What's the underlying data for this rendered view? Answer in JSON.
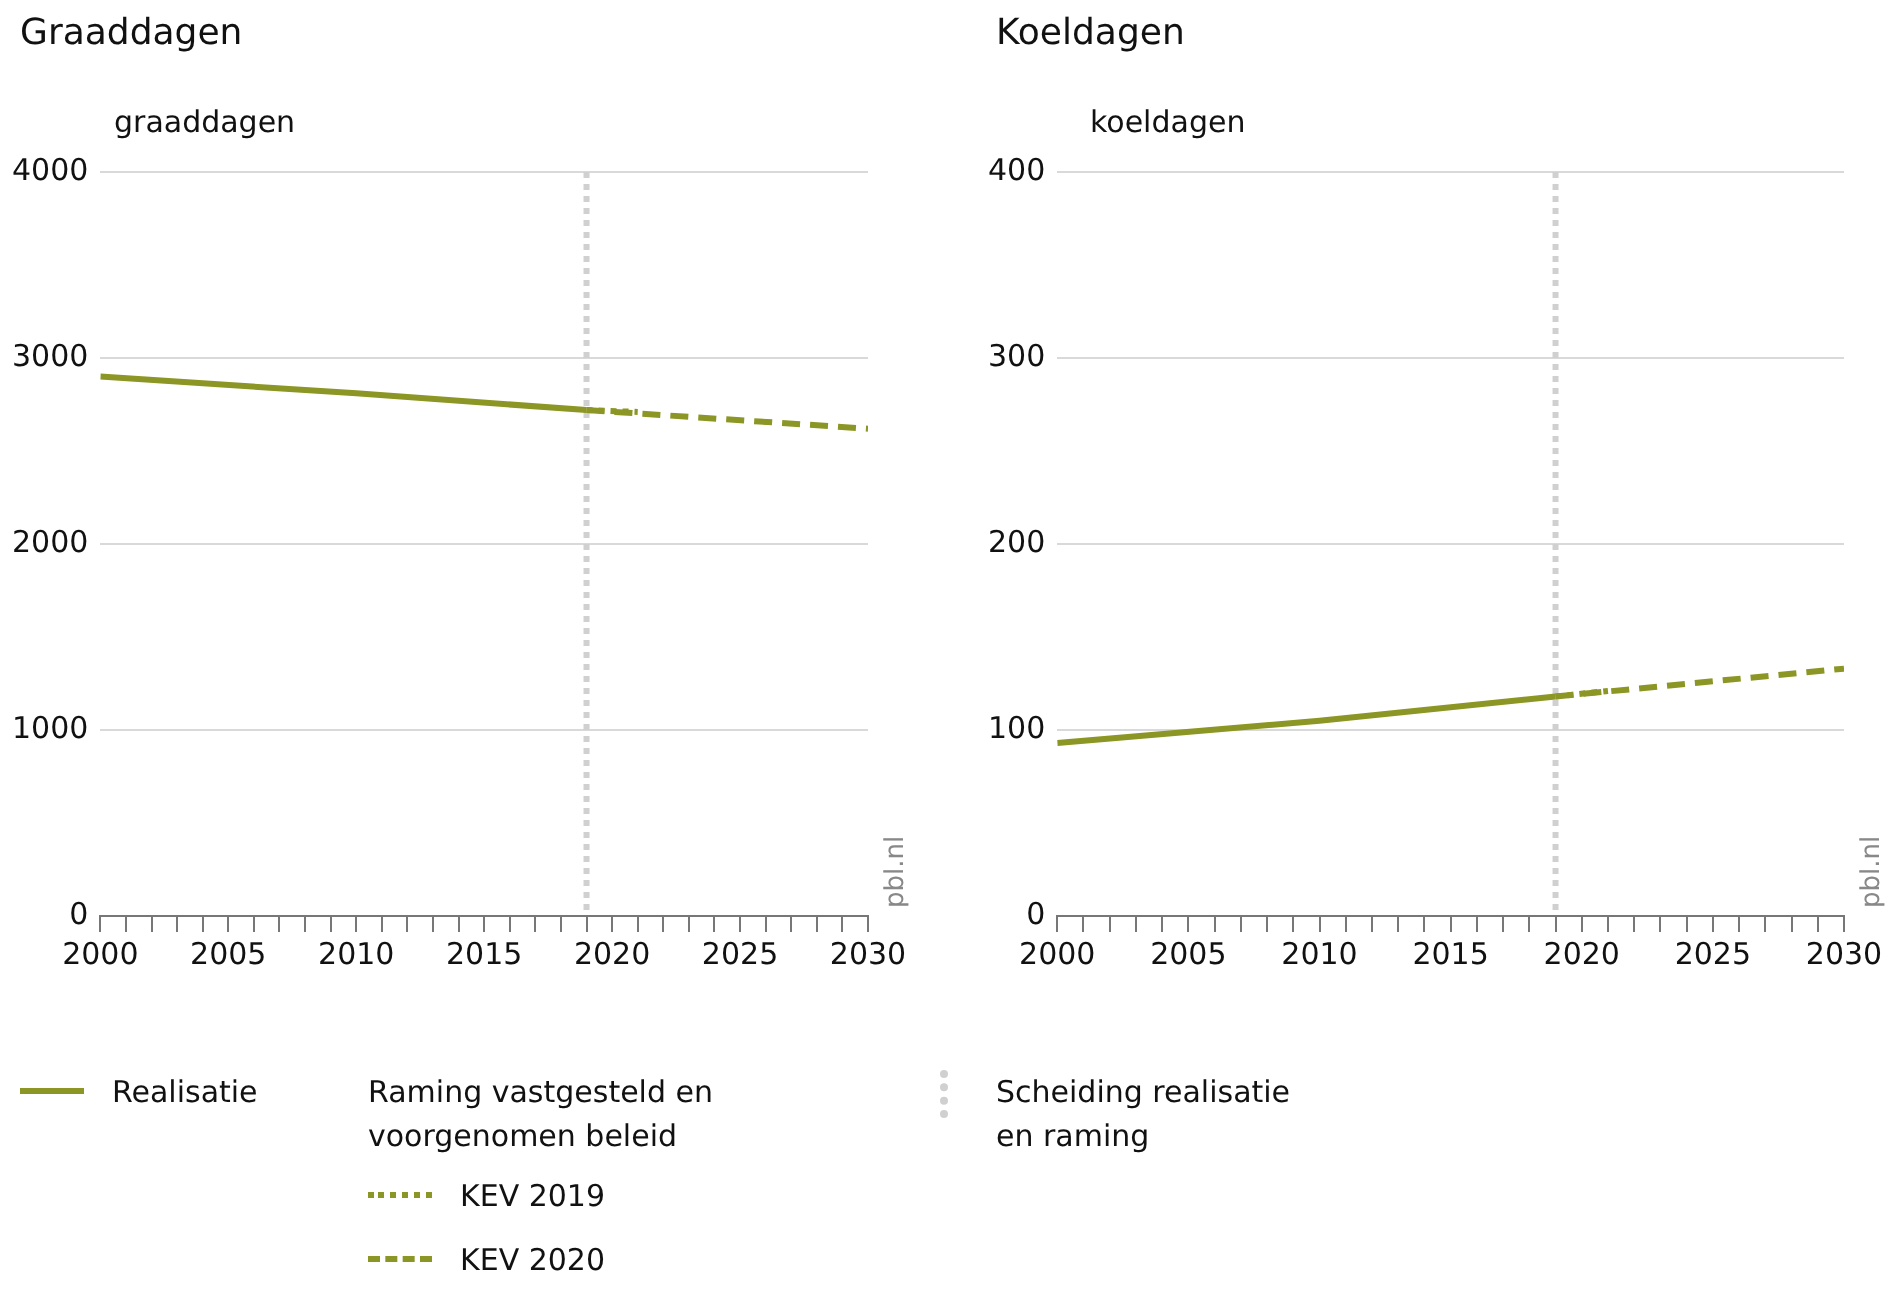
{
  "chart_data": [
    {
      "type": "line",
      "title": "Graaddagen",
      "ylabel": "graaddagen",
      "legend": "bottom",
      "legend_title": "Raming vastgesteld en voorgenomen beleid",
      "grid": "y",
      "marker": "none",
      "xlim": [
        2000,
        2030
      ],
      "xticks": [
        2000,
        {
          "value": 2001,
          "label": null
        },
        {
          "value": 2002,
          "label": null
        },
        {
          "value": 2003,
          "label": null
        },
        {
          "value": 2004,
          "label": null
        },
        2005,
        {
          "value": 2006,
          "label": null
        },
        {
          "value": 2007,
          "label": null
        },
        {
          "value": 2008,
          "label": null
        },
        {
          "value": 2009,
          "label": null
        },
        2010,
        {
          "value": 2011,
          "label": null
        },
        {
          "value": 2012,
          "label": null
        },
        {
          "value": 2013,
          "label": null
        },
        {
          "value": 2014,
          "label": null
        },
        2015,
        {
          "value": 2016,
          "label": null
        },
        {
          "value": 2017,
          "label": null
        },
        {
          "value": 2018,
          "label": null
        },
        {
          "value": 2019,
          "label": null
        },
        2020,
        {
          "value": 2021,
          "label": null
        },
        {
          "value": 2022,
          "label": null
        },
        {
          "value": 2023,
          "label": null
        },
        {
          "value": 2024,
          "label": null
        },
        2025,
        {
          "value": 2026,
          "label": null
        },
        {
          "value": 2027,
          "label": null
        },
        {
          "value": 2028,
          "label": null
        },
        {
          "value": 2029,
          "label": null
        },
        2030
      ],
      "ylim": [
        0,
        4000
      ],
      "yticks": [
        0,
        1000,
        2000,
        3000,
        4000
      ],
      "series": [
        {
          "name": "Realisatie",
          "color": "#8b9624",
          "line_style": "solid",
          "x": [
            2000,
            2010,
            2019
          ],
          "values": [
            2900,
            2810,
            2720
          ]
        },
        {
          "name": "KEV 2020",
          "color": "#8b9624",
          "line_style": "dashed",
          "x": [
            2019,
            2030
          ],
          "values": [
            2720,
            2620
          ]
        },
        {
          "name": "KEV 2019",
          "color": "#8b9624",
          "line_style": "dotted",
          "x": [
            2019,
            2021
          ],
          "values": [
            2720,
            2710
          ]
        }
      ],
      "ref_lines": [
        {
          "axis": "x",
          "value": 2019,
          "label": "Scheiding realisatie en raming",
          "color": "#d0d0d0",
          "line_style": "dotted"
        }
      ],
      "annotations": [
        "pbl.nl"
      ]
    },
    {
      "type": "line",
      "title": "Koeldagen",
      "ylabel": "koeldagen",
      "grid": "y",
      "marker": "none",
      "xlim": [
        2000,
        2030
      ],
      "xticks": [
        2000,
        {
          "value": 2001,
          "label": null
        },
        {
          "value": 2002,
          "label": null
        },
        {
          "value": 2003,
          "label": null
        },
        {
          "value": 2004,
          "label": null
        },
        2005,
        {
          "value": 2006,
          "label": null
        },
        {
          "value": 2007,
          "label": null
        },
        {
          "value": 2008,
          "label": null
        },
        {
          "value": 2009,
          "label": null
        },
        2010,
        {
          "value": 2011,
          "label": null
        },
        {
          "value": 2012,
          "label": null
        },
        {
          "value": 2013,
          "label": null
        },
        {
          "value": 2014,
          "label": null
        },
        2015,
        {
          "value": 2016,
          "label": null
        },
        {
          "value": 2017,
          "label": null
        },
        {
          "value": 2018,
          "label": null
        },
        {
          "value": 2019,
          "label": null
        },
        2020,
        {
          "value": 2021,
          "label": null
        },
        {
          "value": 2022,
          "label": null
        },
        {
          "value": 2023,
          "label": null
        },
        {
          "value": 2024,
          "label": null
        },
        2025,
        {
          "value": 2026,
          "label": null
        },
        {
          "value": 2027,
          "label": null
        },
        {
          "value": 2028,
          "label": null
        },
        {
          "value": 2029,
          "label": null
        },
        2030
      ],
      "ylim": [
        0,
        400
      ],
      "yticks": [
        0,
        100,
        200,
        300,
        400
      ],
      "series": [
        {
          "color": "#8b9624",
          "line_style": "solid",
          "x": [
            2000,
            2010,
            2019
          ],
          "values": [
            93,
            105,
            118
          ]
        },
        {
          "color": "#8b9624",
          "line_style": "dashed",
          "x": [
            2019,
            2030
          ],
          "values": [
            118,
            133
          ]
        },
        {
          "color": "#8b9624",
          "line_style": "dotted",
          "x": [
            2019,
            2021
          ],
          "values": [
            118,
            121
          ]
        }
      ],
      "ref_lines": [
        {
          "axis": "x",
          "value": 2019,
          "color": "#d0d0d0",
          "line_style": "dotted"
        }
      ],
      "annotations": [
        "pbl.nl"
      ]
    }
  ]
}
